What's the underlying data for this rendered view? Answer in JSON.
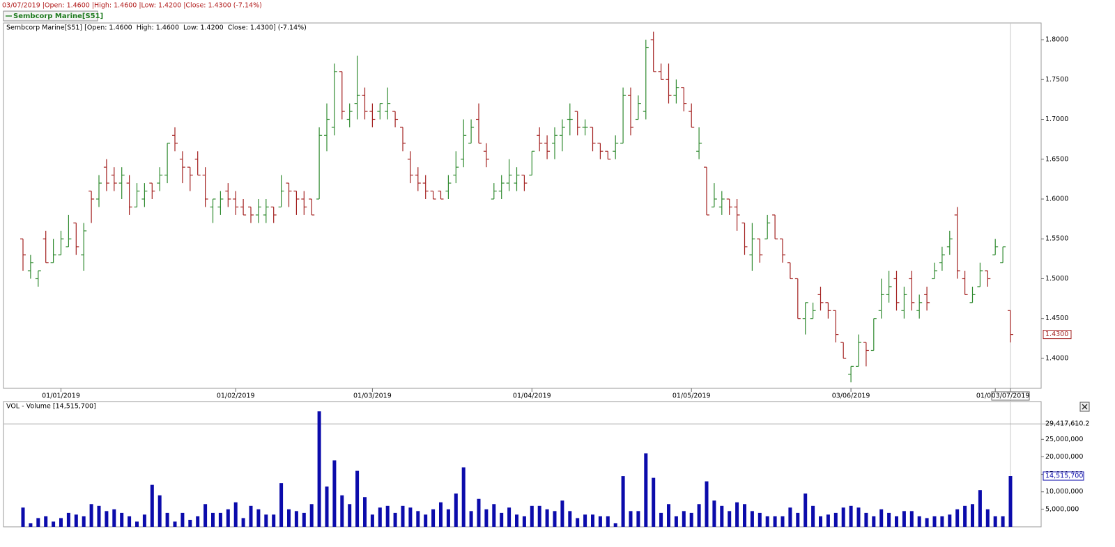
{
  "header": {
    "info": "03/07/2019 |Open: 1.4600 |High: 1.4600 |Low: 1.4200 |Close: 1.4300 (-7.14%)",
    "legend": "Sembcorp Marine[S51]"
  },
  "chart_data": [
    {
      "type": "ohlc",
      "title": "Sembcorp Marine[S51] [Open: 1.4600  High: 1.4600  Low: 1.4200  Close: 1.4300] (-7.14%)",
      "up_color": "#2f8a2f",
      "down_color": "#a3201f",
      "categories": [
        null,
        null,
        null,
        null,
        null,
        "01/01/2019",
        null,
        null,
        null,
        null,
        null,
        null,
        null,
        null,
        null,
        null,
        null,
        null,
        null,
        null,
        null,
        null,
        null,
        null,
        null,
        null,
        null,
        null,
        "01/02/2019",
        null,
        null,
        null,
        null,
        null,
        null,
        null,
        null,
        null,
        null,
        null,
        null,
        null,
        null,
        null,
        null,
        null,
        "01/03/2019",
        null,
        null,
        null,
        null,
        null,
        null,
        null,
        null,
        null,
        null,
        null,
        null,
        null,
        null,
        null,
        null,
        null,
        null,
        null,
        null,
        "01/04/2019",
        null,
        null,
        null,
        null,
        null,
        null,
        null,
        null,
        null,
        null,
        null,
        null,
        null,
        null,
        null,
        null,
        null,
        null,
        null,
        null,
        "01/05/2019",
        null,
        null,
        null,
        null,
        null,
        null,
        null,
        null,
        null,
        null,
        null,
        null,
        null,
        null,
        null,
        null,
        null,
        null,
        null,
        null,
        "03/06/2019",
        null,
        null,
        null,
        null,
        null,
        null,
        null,
        null,
        null,
        null,
        null,
        null,
        null,
        null,
        null,
        null,
        null,
        null,
        "01/07/2019",
        null,
        "03/07/2019"
      ],
      "open": [
        1.55,
        1.51,
        1.5,
        1.55,
        1.52,
        1.53,
        1.54,
        1.57,
        1.53,
        1.61,
        1.6,
        1.64,
        1.63,
        1.62,
        1.62,
        1.59,
        1.6,
        1.62,
        1.62,
        1.63,
        1.68,
        1.65,
        1.64,
        1.65,
        1.63,
        1.59,
        1.59,
        1.61,
        1.6,
        1.59,
        1.59,
        1.58,
        1.58,
        1.59,
        1.59,
        1.62,
        1.61,
        1.6,
        1.6,
        1.6,
        1.68,
        1.69,
        1.76,
        1.7,
        1.72,
        1.73,
        1.71,
        1.71,
        1.71,
        1.71,
        1.69,
        1.65,
        1.63,
        1.62,
        1.61,
        1.61,
        1.61,
        1.63,
        1.65,
        1.67,
        1.7,
        1.66,
        1.6,
        1.61,
        1.62,
        1.62,
        1.63,
        1.63,
        1.68,
        1.67,
        1.67,
        1.68,
        1.7,
        1.71,
        1.69,
        1.69,
        1.67,
        1.66,
        1.66,
        1.67,
        1.73,
        1.7,
        1.71,
        1.8,
        1.76,
        1.75,
        1.73,
        1.74,
        1.71,
        1.66,
        1.64,
        1.59,
        1.59,
        1.6,
        1.59,
        1.57,
        1.53,
        1.55,
        1.55,
        1.58,
        1.55,
        1.52,
        1.5,
        1.45,
        1.45,
        1.48,
        1.47,
        1.46,
        1.42,
        1.38,
        1.39,
        1.42,
        1.41,
        1.46,
        1.48,
        1.5,
        1.46,
        1.5,
        1.46,
        1.48,
        1.5,
        1.52,
        1.54,
        1.58,
        1.5,
        1.47,
        1.49,
        1.51,
        1.53,
        1.52,
        1.46
      ],
      "high": [
        1.55,
        1.53,
        1.51,
        1.56,
        1.55,
        1.56,
        1.58,
        1.57,
        1.57,
        1.61,
        1.63,
        1.65,
        1.64,
        1.64,
        1.63,
        1.62,
        1.62,
        1.62,
        1.64,
        1.67,
        1.69,
        1.66,
        1.64,
        1.66,
        1.64,
        1.6,
        1.61,
        1.62,
        1.61,
        1.6,
        1.59,
        1.6,
        1.6,
        1.59,
        1.63,
        1.62,
        1.61,
        1.61,
        1.6,
        1.69,
        1.72,
        1.77,
        1.76,
        1.72,
        1.78,
        1.74,
        1.72,
        1.72,
        1.74,
        1.71,
        1.69,
        1.66,
        1.64,
        1.63,
        1.61,
        1.61,
        1.63,
        1.66,
        1.7,
        1.7,
        1.72,
        1.67,
        1.62,
        1.63,
        1.65,
        1.64,
        1.63,
        1.66,
        1.69,
        1.68,
        1.69,
        1.7,
        1.72,
        1.71,
        1.7,
        1.69,
        1.67,
        1.66,
        1.68,
        1.74,
        1.74,
        1.73,
        1.8,
        1.81,
        1.77,
        1.77,
        1.75,
        1.74,
        1.72,
        1.69,
        1.64,
        1.62,
        1.61,
        1.6,
        1.6,
        1.57,
        1.57,
        1.55,
        1.58,
        1.58,
        1.55,
        1.52,
        1.5,
        1.47,
        1.47,
        1.49,
        1.47,
        1.46,
        1.42,
        1.39,
        1.43,
        1.42,
        1.45,
        1.5,
        1.51,
        1.51,
        1.49,
        1.51,
        1.48,
        1.49,
        1.52,
        1.54,
        1.56,
        1.59,
        1.51,
        1.49,
        1.52,
        1.51,
        1.55,
        1.54,
        1.46
      ],
      "low": [
        1.51,
        1.5,
        1.49,
        1.52,
        1.52,
        1.53,
        1.54,
        1.53,
        1.51,
        1.57,
        1.59,
        1.61,
        1.61,
        1.6,
        1.58,
        1.59,
        1.59,
        1.6,
        1.61,
        1.62,
        1.66,
        1.62,
        1.61,
        1.63,
        1.59,
        1.57,
        1.58,
        1.59,
        1.58,
        1.58,
        1.57,
        1.57,
        1.57,
        1.57,
        1.59,
        1.59,
        1.58,
        1.58,
        1.58,
        1.6,
        1.66,
        1.68,
        1.7,
        1.69,
        1.7,
        1.7,
        1.69,
        1.7,
        1.7,
        1.69,
        1.66,
        1.62,
        1.61,
        1.6,
        1.6,
        1.6,
        1.6,
        1.62,
        1.64,
        1.67,
        1.67,
        1.64,
        1.6,
        1.6,
        1.61,
        1.61,
        1.61,
        1.63,
        1.66,
        1.65,
        1.65,
        1.66,
        1.68,
        1.68,
        1.68,
        1.66,
        1.65,
        1.65,
        1.65,
        1.67,
        1.68,
        1.7,
        1.7,
        1.76,
        1.75,
        1.72,
        1.72,
        1.71,
        1.69,
        1.65,
        1.58,
        1.59,
        1.58,
        1.58,
        1.56,
        1.53,
        1.51,
        1.52,
        1.55,
        1.55,
        1.52,
        1.5,
        1.45,
        1.43,
        1.45,
        1.46,
        1.45,
        1.42,
        1.4,
        1.37,
        1.39,
        1.39,
        1.41,
        1.45,
        1.47,
        1.46,
        1.45,
        1.46,
        1.45,
        1.46,
        1.5,
        1.51,
        1.53,
        1.5,
        1.48,
        1.47,
        1.49,
        1.49,
        1.53,
        1.52,
        1.42
      ],
      "close": [
        1.53,
        1.52,
        1.51,
        1.52,
        1.53,
        1.55,
        1.55,
        1.54,
        1.56,
        1.6,
        1.62,
        1.62,
        1.62,
        1.63,
        1.59,
        1.61,
        1.61,
        1.61,
        1.63,
        1.67,
        1.67,
        1.64,
        1.63,
        1.63,
        1.6,
        1.6,
        1.6,
        1.6,
        1.59,
        1.58,
        1.58,
        1.59,
        1.59,
        1.58,
        1.61,
        1.61,
        1.6,
        1.59,
        1.58,
        1.68,
        1.7,
        1.76,
        1.71,
        1.71,
        1.73,
        1.71,
        1.7,
        1.72,
        1.72,
        1.7,
        1.67,
        1.63,
        1.62,
        1.61,
        1.6,
        1.6,
        1.62,
        1.64,
        1.68,
        1.69,
        1.67,
        1.65,
        1.61,
        1.62,
        1.63,
        1.63,
        1.62,
        1.66,
        1.67,
        1.66,
        1.68,
        1.69,
        1.7,
        1.69,
        1.69,
        1.67,
        1.66,
        1.65,
        1.67,
        1.73,
        1.69,
        1.72,
        1.79,
        1.76,
        1.75,
        1.73,
        1.74,
        1.72,
        1.69,
        1.67,
        1.58,
        1.6,
        1.6,
        1.59,
        1.58,
        1.54,
        1.55,
        1.53,
        1.57,
        1.55,
        1.53,
        1.5,
        1.45,
        1.47,
        1.46,
        1.47,
        1.46,
        1.43,
        1.4,
        1.39,
        1.42,
        1.41,
        1.45,
        1.48,
        1.49,
        1.47,
        1.48,
        1.47,
        1.47,
        1.47,
        1.51,
        1.53,
        1.55,
        1.51,
        1.48,
        1.48,
        1.51,
        1.5,
        1.54,
        1.54,
        1.43
      ],
      "value_labels": [
        null,
        null,
        null,
        null,
        null,
        null,
        null,
        null,
        null,
        null,
        null,
        null,
        null,
        null,
        null,
        null,
        null,
        null,
        null,
        null,
        null,
        null,
        null,
        null,
        null,
        null,
        null,
        null,
        null,
        null,
        null,
        null,
        null,
        null,
        null,
        null,
        null,
        null,
        null,
        null,
        null,
        null,
        null,
        null,
        null,
        null,
        null,
        null,
        null,
        null,
        null,
        null,
        null,
        null,
        null,
        null,
        null,
        null,
        null,
        null,
        null,
        null,
        null,
        null,
        null,
        null,
        null,
        null,
        null,
        null,
        null,
        null,
        null,
        null,
        null,
        null,
        null,
        null,
        null,
        null,
        null,
        null,
        null,
        null,
        null,
        null,
        null,
        null,
        null,
        null,
        null,
        null,
        null,
        null,
        null,
        null,
        null,
        null,
        null,
        null,
        null,
        null,
        null,
        null,
        null,
        null,
        null,
        null,
        null,
        null,
        null,
        null,
        null,
        null,
        null,
        null,
        null,
        null,
        null,
        null,
        null,
        null,
        null,
        null,
        null,
        null,
        null,
        null,
        null,
        null,
        "1.4300"
      ],
      "ylim": [
        1.3624,
        1.821
      ],
      "yticks": [
        {
          "value": 1.4,
          "label": "1.4000"
        },
        {
          "value": 1.45,
          "label": "1.4500"
        },
        {
          "value": 1.5,
          "label": "1.5000"
        },
        {
          "value": 1.55,
          "label": "1.5500"
        },
        {
          "value": 1.6,
          "label": "1.6000"
        },
        {
          "value": 1.65,
          "label": "1.6500"
        },
        {
          "value": 1.7,
          "label": "1.7000"
        },
        {
          "value": 1.75,
          "label": "1.7500"
        },
        {
          "value": 1.8,
          "label": "1.8000"
        }
      ]
    },
    {
      "type": "bar",
      "title": "VOL - Volume [14,515,700]",
      "color": "#0b0bab",
      "values": [
        5500000,
        1000000,
        2500000,
        3000000,
        1500000,
        2500000,
        4000000,
        3500000,
        3000000,
        6500000,
        6000000,
        4500000,
        5000000,
        4000000,
        3000000,
        1500000,
        3500000,
        12000000,
        9000000,
        4000000,
        1500000,
        4000000,
        2000000,
        3000000,
        6500000,
        4000000,
        4000000,
        5000000,
        7000000,
        2500000,
        6000000,
        5000000,
        3500000,
        3500000,
        12500000,
        5000000,
        4500000,
        4000000,
        6500000,
        33000000,
        11500000,
        19000000,
        9000000,
        6500000,
        16000000,
        8500000,
        3500000,
        5500000,
        6000000,
        4000000,
        6000000,
        5500000,
        4500000,
        3500000,
        5000000,
        7000000,
        5000000,
        9500000,
        17000000,
        4500000,
        8000000,
        5000000,
        6500000,
        4000000,
        5500000,
        3500000,
        3000000,
        6000000,
        6000000,
        5000000,
        4500000,
        7500000,
        4500000,
        2500000,
        3500000,
        3500000,
        3000000,
        3000000,
        1000000,
        14500000,
        4500000,
        4500000,
        21000000,
        14000000,
        4000000,
        6500000,
        3000000,
        4500000,
        4000000,
        6500000,
        13000000,
        7500000,
        6000000,
        4500000,
        7000000,
        6500000,
        4500000,
        4000000,
        3000000,
        3000000,
        3000000,
        5500000,
        4000000,
        9500000,
        6000000,
        3000000,
        3500000,
        4000000,
        5500000,
        6000000,
        5500000,
        4000000,
        3000000,
        5000000,
        4000000,
        3000000,
        4500000,
        4500000,
        3000000,
        2500000,
        3000000,
        3000000,
        3500000,
        5000000,
        6000000,
        6500000,
        10500000,
        5000000,
        3000000,
        3000000,
        14515700
      ],
      "value_labels": [
        null,
        null,
        null,
        null,
        null,
        null,
        null,
        null,
        null,
        null,
        null,
        null,
        null,
        null,
        null,
        null,
        null,
        null,
        null,
        null,
        null,
        null,
        null,
        null,
        null,
        null,
        null,
        null,
        null,
        null,
        null,
        null,
        null,
        null,
        null,
        null,
        null,
        null,
        null,
        null,
        null,
        null,
        null,
        null,
        null,
        null,
        null,
        null,
        null,
        null,
        null,
        null,
        null,
        null,
        null,
        null,
        null,
        null,
        null,
        null,
        null,
        null,
        null,
        null,
        null,
        null,
        null,
        null,
        null,
        null,
        null,
        null,
        null,
        null,
        null,
        null,
        null,
        null,
        null,
        null,
        null,
        null,
        null,
        null,
        null,
        null,
        null,
        null,
        null,
        null,
        null,
        null,
        null,
        null,
        null,
        null,
        null,
        null,
        null,
        null,
        null,
        null,
        null,
        null,
        null,
        null,
        null,
        null,
        null,
        null,
        null,
        null,
        null,
        null,
        null,
        null,
        null,
        null,
        null,
        null,
        null,
        null,
        null,
        null,
        null,
        null,
        null,
        null,
        null,
        null,
        "14,515,700"
      ],
      "ylim": [
        0,
        35800000
      ],
      "yticks": [
        {
          "value": 5000000,
          "label": "5,000,000"
        },
        {
          "value": 10000000,
          "label": "10,000,000"
        },
        {
          "value": 15000000,
          "label": "15,000,000"
        },
        {
          "value": 20000000,
          "label": "20,000,000"
        },
        {
          "value": 25000000,
          "label": "25,000,000"
        }
      ],
      "ref_line": {
        "value": 29417610.2,
        "label": "29,417,610.2"
      }
    }
  ]
}
